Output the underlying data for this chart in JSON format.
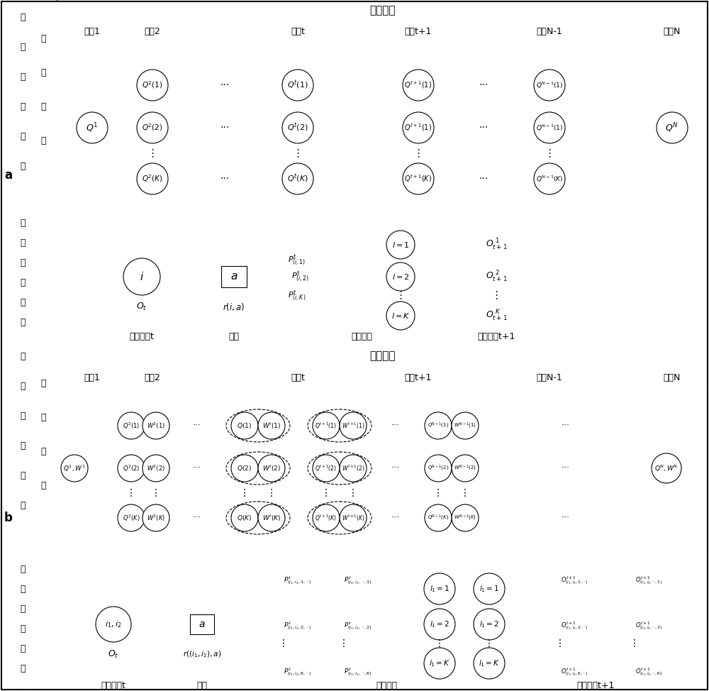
{
  "bg_color": "#ffffff",
  "section_a_label": "a",
  "section_b_label": "b",
  "header_text": "阶段变量",
  "stage_cols": [
    "阶段1",
    "阶段2",
    "阶段t",
    "阶段t+1",
    "阶段N-1",
    "阶段N"
  ],
  "label_1d": [
    "一",
    "维",
    "随",
    "机",
    "过",
    "程"
  ],
  "label_state_trans_a": [
    "状",
    "态",
    "转",
    "移",
    "方",
    "程"
  ],
  "label_state_var": [
    "状",
    "态",
    "变",
    "量"
  ],
  "label_nd": [
    "多",
    "维",
    "随",
    "机",
    "过",
    "程"
  ],
  "label_state_trans_b": [
    "状",
    "态",
    "转",
    "移",
    "方",
    "程"
  ],
  "bottom_labels": [
    "当前阶段t",
    "决策",
    "转移概率",
    "下一阶段t+1"
  ],
  "font_cn": "SimSun"
}
